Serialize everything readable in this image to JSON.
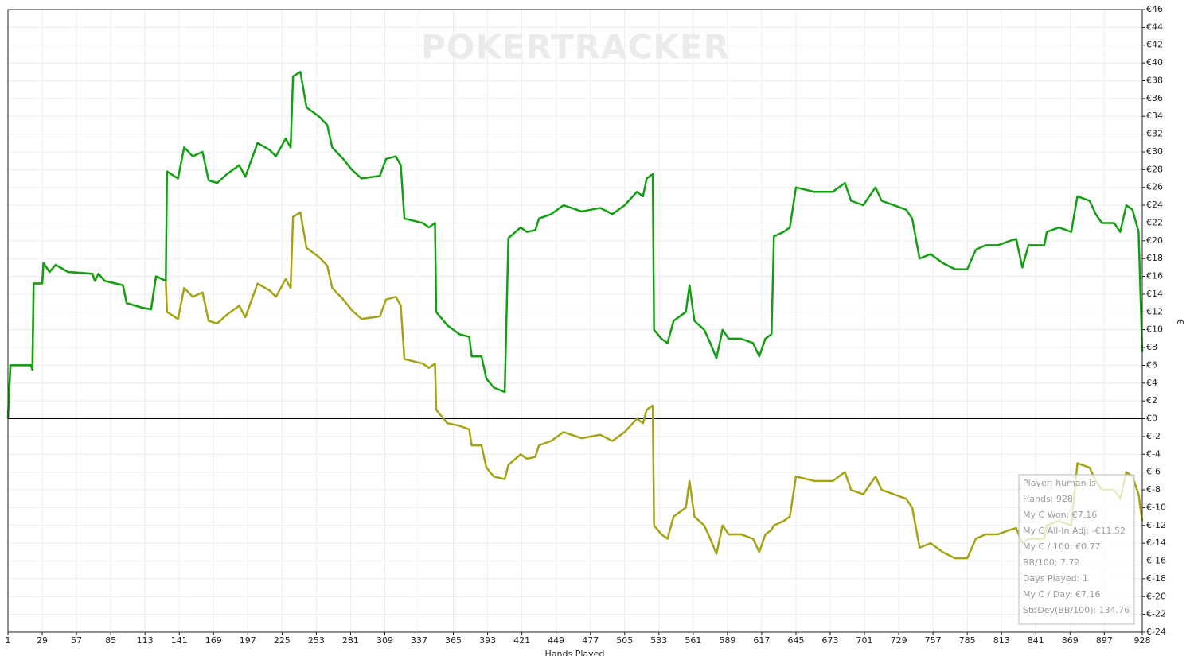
{
  "chart_data": {
    "type": "line",
    "watermark": "POKERTRACKER",
    "xlabel": "Hands Played",
    "ylabel": "€",
    "grid": true,
    "x": [
      1,
      3,
      20,
      21,
      22,
      29,
      30,
      35,
      40,
      50,
      70,
      72,
      75,
      80,
      95,
      98,
      110,
      118,
      122,
      130,
      131,
      140,
      145,
      152,
      160,
      165,
      172,
      180,
      190,
      195,
      205,
      215,
      220,
      228,
      232,
      234,
      240,
      245,
      255,
      262,
      266,
      275,
      282,
      290,
      305,
      310,
      318,
      322,
      325,
      340,
      345,
      350,
      351,
      360,
      370,
      378,
      380,
      388,
      392,
      398,
      407,
      410,
      420,
      425,
      432,
      435,
      445,
      455,
      470,
      485,
      495,
      505,
      515,
      520,
      523,
      528,
      529,
      535,
      540,
      545,
      555,
      558,
      562,
      570,
      575,
      580,
      585,
      590,
      600,
      610,
      615,
      620,
      625,
      627,
      635,
      640,
      645,
      660,
      675,
      685,
      690,
      700,
      710,
      715,
      725,
      735,
      740,
      746,
      755,
      765,
      775,
      785,
      792,
      800,
      810,
      820,
      825,
      830,
      835,
      848,
      850,
      860,
      870,
      875,
      885,
      890,
      895,
      905,
      910,
      915,
      920,
      925,
      928
    ],
    "series": [
      {
        "color": "#11a011",
        "values": [
          0,
          6,
          6,
          5.5,
          15.2,
          15.2,
          17.5,
          16.5,
          17.3,
          16.5,
          16.3,
          15.5,
          16.3,
          15.5,
          15,
          13,
          12.5,
          12.3,
          16,
          15.5,
          27.8,
          27,
          30.5,
          29.5,
          30,
          26.8,
          26.5,
          27.5,
          28.5,
          27.2,
          31,
          30.2,
          29.5,
          31.5,
          30.5,
          38.5,
          39,
          35,
          34,
          33,
          30.5,
          29.2,
          28,
          27,
          27.3,
          29.2,
          29.5,
          28.5,
          22.5,
          22,
          21.5,
          22,
          12,
          10.5,
          9.5,
          9.2,
          7,
          7,
          4.5,
          3.5,
          3,
          20.3,
          21.5,
          21,
          21.2,
          22.5,
          23,
          24,
          23.3,
          23.7,
          23,
          24,
          25.5,
          25,
          27,
          27.5,
          10,
          9,
          8.5,
          11,
          12,
          15,
          11,
          10,
          8.5,
          6.8,
          10,
          9,
          9,
          8.5,
          7,
          9,
          9.5,
          20.5,
          21,
          21.5,
          26,
          25.5,
          25.5,
          26.5,
          24.5,
          24,
          26,
          24.5,
          24,
          23.5,
          22.5,
          18,
          18.5,
          17.5,
          16.8,
          16.8,
          19,
          19.5,
          19.5,
          20,
          20.2,
          17,
          19.5,
          19.5,
          21,
          21.5,
          21,
          25,
          24.5,
          23,
          22,
          22,
          21,
          24,
          23.5,
          21,
          7.5
        ]
      },
      {
        "color": "#a3a313",
        "values": [
          0,
          6,
          6,
          5.5,
          15.2,
          15.2,
          17.5,
          16.5,
          17.3,
          16.5,
          16.3,
          15.5,
          16.3,
          15.5,
          15,
          13,
          12.5,
          12.3,
          16,
          15.5,
          12,
          11.2,
          14.7,
          13.7,
          14.2,
          11,
          10.7,
          11.7,
          12.7,
          11.4,
          15.2,
          14.4,
          13.7,
          15.7,
          14.7,
          22.7,
          23.2,
          19.2,
          18.2,
          17.2,
          14.7,
          13.4,
          12.2,
          11.2,
          11.5,
          13.4,
          13.7,
          12.7,
          6.7,
          6.2,
          5.7,
          6.2,
          1,
          -0.5,
          -0.8,
          -1.2,
          -3,
          -3,
          -5.5,
          -6.5,
          -6.8,
          -5.2,
          -4,
          -4.5,
          -4.3,
          -3,
          -2.5,
          -1.5,
          -2.2,
          -1.8,
          -2.5,
          -1.5,
          0,
          -0.5,
          1,
          1.5,
          -12,
          -13,
          -13.5,
          -11,
          -10,
          -7,
          -11,
          -12,
          -13.5,
          -15.2,
          -12,
          -13,
          -13,
          -13.5,
          -15,
          -13,
          -12.5,
          -12,
          -11.5,
          -11,
          -6.5,
          -7,
          -7,
          -6,
          -8,
          -8.5,
          -6.5,
          -8,
          -8.5,
          -9,
          -10,
          -14.5,
          -14,
          -15,
          -15.7,
          -15.7,
          -13.5,
          -13,
          -13,
          -12.5,
          -12.3,
          -14,
          -13.5,
          -13.5,
          -12,
          -11.5,
          -12,
          -5,
          -5.5,
          -7,
          -8,
          -8,
          -9,
          -6,
          -6.5,
          -8.5,
          -11.5
        ]
      }
    ],
    "xlim": [
      1,
      928
    ],
    "xticks": [
      1,
      29,
      57,
      85,
      113,
      141,
      169,
      197,
      225,
      253,
      281,
      309,
      337,
      365,
      393,
      421,
      449,
      477,
      505,
      533,
      561,
      589,
      617,
      645,
      673,
      701,
      729,
      757,
      785,
      813,
      841,
      869,
      897,
      928
    ],
    "ylim": [
      -24,
      46
    ],
    "yticks": [
      {
        "value": -24,
        "label": "€-24"
      },
      {
        "value": -22,
        "label": "€-22"
      },
      {
        "value": -20,
        "label": "€-20"
      },
      {
        "value": -18,
        "label": "€-18"
      },
      {
        "value": -16,
        "label": "€-16"
      },
      {
        "value": -14,
        "label": "€-14"
      },
      {
        "value": -12,
        "label": "€-12"
      },
      {
        "value": -10,
        "label": "€-10"
      },
      {
        "value": -8,
        "label": "€-8"
      },
      {
        "value": -6,
        "label": "€-6"
      },
      {
        "value": -4,
        "label": "€-4"
      },
      {
        "value": -2,
        "label": "€-2"
      },
      {
        "value": 0,
        "label": "€0"
      },
      {
        "value": 2,
        "label": "€2"
      },
      {
        "value": 4,
        "label": "€4"
      },
      {
        "value": 6,
        "label": "€6"
      },
      {
        "value": 8,
        "label": "€8"
      },
      {
        "value": 10,
        "label": "€10"
      },
      {
        "value": 12,
        "label": "€12"
      },
      {
        "value": 14,
        "label": "€14"
      },
      {
        "value": 16,
        "label": "€16"
      },
      {
        "value": 18,
        "label": "€18"
      },
      {
        "value": 20,
        "label": "€20"
      },
      {
        "value": 22,
        "label": "€22"
      },
      {
        "value": 24,
        "label": "€24"
      },
      {
        "value": 26,
        "label": "€26"
      },
      {
        "value": 28,
        "label": "€28"
      },
      {
        "value": 30,
        "label": "€30"
      },
      {
        "value": 32,
        "label": "€32"
      },
      {
        "value": 34,
        "label": "€34"
      },
      {
        "value": 36,
        "label": "€36"
      },
      {
        "value": 38,
        "label": "€38"
      },
      {
        "value": 40,
        "label": "€40"
      },
      {
        "value": 42,
        "label": "€42"
      },
      {
        "value": 44,
        "label": "€44"
      },
      {
        "value": 46,
        "label": "€46"
      }
    ],
    "tooltip": [
      "Player: human is",
      "Hands: 928",
      "My C Won: €7.16",
      "My C All-In Adj: -€11.52",
      "My C / 100: €0.77",
      "BB/100: 7.72",
      "Days Played: 1",
      "My C / Day: €7.16",
      "StdDev(BB/100): 134.76"
    ]
  }
}
